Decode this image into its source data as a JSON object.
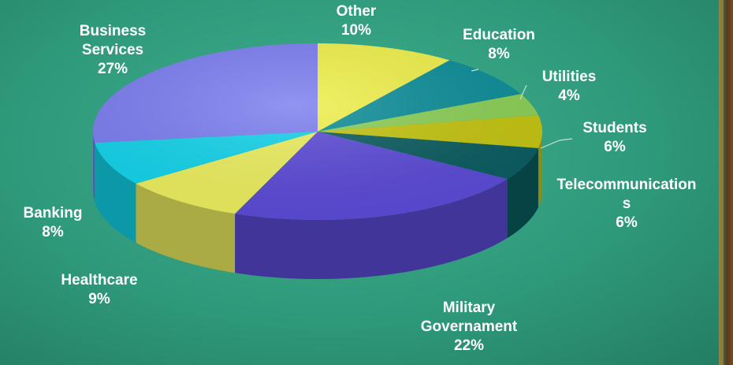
{
  "chart_data": {
    "type": "pie",
    "title": "",
    "slices": [
      {
        "label_lines": [
          "Other",
          "10%"
        ],
        "name": "Other",
        "value": 10,
        "color": "#f0f04a"
      },
      {
        "label_lines": [
          "Education",
          "8%"
        ],
        "name": "Education",
        "value": 8,
        "color": "#0b8d98"
      },
      {
        "label_lines": [
          "Utilities",
          "4%"
        ],
        "name": "Utilities",
        "value": 4,
        "color": "#8bcf56"
      },
      {
        "label_lines": [
          "Students",
          "6%"
        ],
        "name": "Students",
        "value": 6,
        "color": "#c3c410"
      },
      {
        "label_lines": [
          "Telecommunication",
          "s",
          "6%"
        ],
        "name": "Telecommunications",
        "value": 6,
        "color": "#0a5c60"
      },
      {
        "label_lines": [
          "Military",
          "Governament",
          "22%"
        ],
        "name": "Military Governament",
        "value": 22,
        "color": "#5b4ad6"
      },
      {
        "label_lines": [
          "Healthcare",
          "9%"
        ],
        "name": "Healthcare",
        "value": 9,
        "color": "#ecee5e"
      },
      {
        "label_lines": [
          "Banking",
          "8%"
        ],
        "name": "Banking",
        "value": 8,
        "color": "#12d3ea"
      },
      {
        "label_lines": [
          "Business",
          "Services",
          "27%"
        ],
        "name": "Business Services",
        "value": 27,
        "color": "#7b7df0"
      }
    ]
  }
}
